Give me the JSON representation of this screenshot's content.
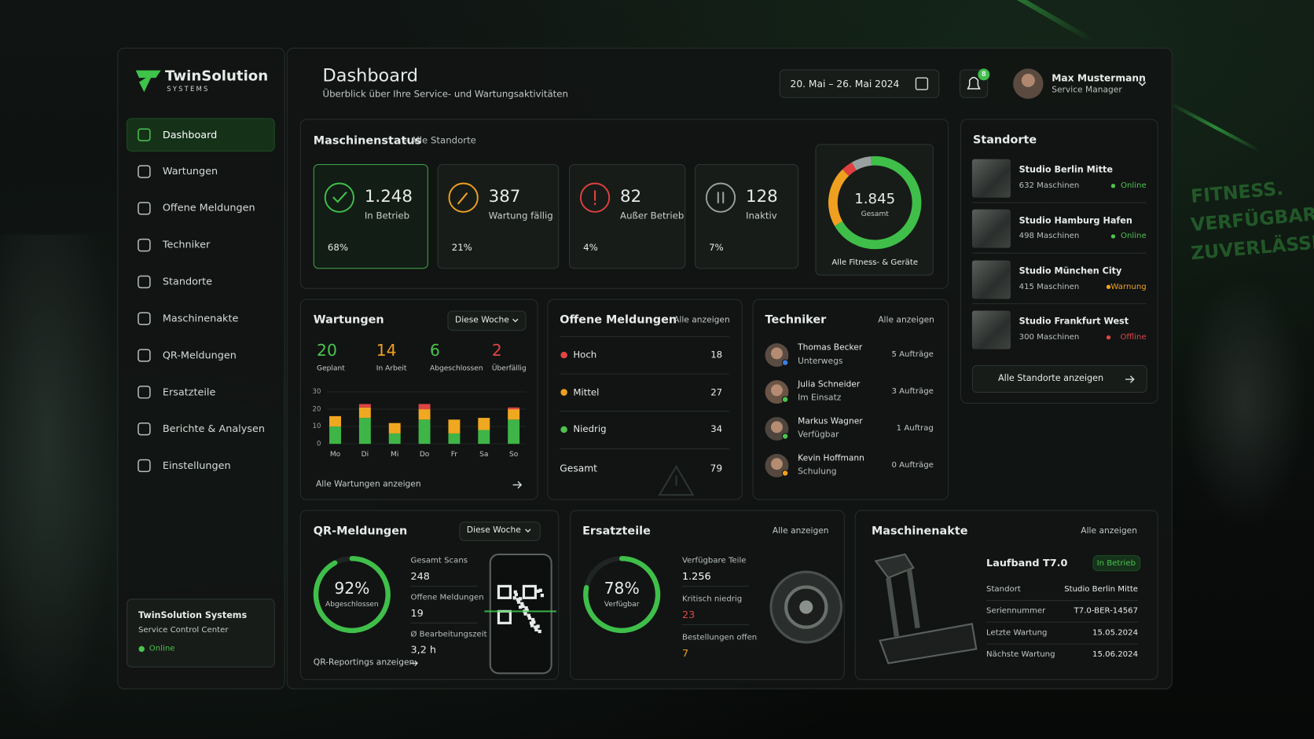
{
  "brand": {
    "name": "TwinSolution",
    "tagline": "SYSTEMS"
  },
  "nav": [
    "Dashboard",
    "Wartungen",
    "Offene Meldungen",
    "Techniker",
    "Standorte",
    "Maschinenakte",
    "QR-Meldungen",
    "Ersatzteile",
    "Berichte & Analysen",
    "Einstellungen"
  ],
  "system": {
    "name": "TwinSolution Systems",
    "subtitle": "Service Control Center",
    "status": "Online"
  },
  "header": {
    "title": "Dashboard",
    "subtitle": "Überblick über Ihre Service- und Wartungsaktivitäten",
    "date_range": "20. Mai – 26. Mai 2024",
    "notifications": "8",
    "user": "Max Mustermann",
    "role": "Service Manager"
  },
  "machine_status": {
    "title": "Maschinenstatus",
    "scope": "– Alle Standorte",
    "cards": [
      {
        "value": "1.248",
        "label": "In Betrieb",
        "percent": 68,
        "percent_label": "68%",
        "color": "#3fbf4a"
      },
      {
        "value": "387",
        "label": "Wartung fällig",
        "percent": 21,
        "percent_label": "21%",
        "color": "#f0a020"
      },
      {
        "value": "82",
        "label": "Außer Betrieb",
        "percent": 4,
        "percent_label": "4%",
        "color": "#e04040"
      },
      {
        "value": "128",
        "label": "Inaktiv",
        "percent": 7,
        "percent_label": "7%",
        "color": "#9aa0a0"
      }
    ],
    "total": "1.845",
    "total_label": "Gesamt",
    "caption": "Alle Fitness- & Geräte"
  },
  "maintenance": {
    "title": "Wartungen",
    "period": "Diese Woche",
    "stats": [
      {
        "value": "20",
        "label": "Geplant",
        "color": "#4cc34f"
      },
      {
        "value": "14",
        "label": "In Arbeit",
        "color": "#f0a020"
      },
      {
        "value": "6",
        "label": "Abgeschlossen",
        "color": "#4cc34f"
      },
      {
        "value": "2",
        "label": "Überfällig",
        "color": "#e04545"
      }
    ],
    "chart": {
      "type": "bar",
      "stacked": true,
      "categories": [
        "Mo",
        "Di",
        "Mi",
        "Do",
        "Fr",
        "Sa",
        "So"
      ],
      "series": [
        {
          "color": "#3fb548",
          "values": [
            10,
            15,
            6,
            14,
            6,
            8,
            14
          ]
        },
        {
          "color": "#f0a820",
          "values": [
            6,
            6,
            6,
            6,
            8,
            7,
            6
          ]
        },
        {
          "color": "#e04545",
          "values": [
            0,
            2,
            0,
            3,
            0,
            0,
            1
          ]
        }
      ],
      "ylim": [
        0,
        30
      ],
      "yticks": [
        0,
        10,
        20,
        30
      ]
    },
    "link": "Alle Wartungen anzeigen"
  },
  "reports": {
    "title": "Offene Meldungen",
    "link": "Alle anzeigen",
    "rows": [
      {
        "label": "Hoch",
        "value": "18",
        "color": "#e04545"
      },
      {
        "label": "Mittel",
        "value": "27",
        "color": "#f0a020"
      },
      {
        "label": "Niedrig",
        "value": "34",
        "color": "#4cc34f"
      }
    ],
    "total_label": "Gesamt",
    "total": "79"
  },
  "technicians": {
    "title": "Techniker",
    "link": "Alle anzeigen",
    "rows": [
      {
        "name": "Thomas Becker",
        "status": "Unterwegs",
        "orders": "5 Aufträge",
        "dot": "#3a7fe0"
      },
      {
        "name": "Julia Schneider",
        "status": "Im Einsatz",
        "orders": "3 Aufträge",
        "dot": "#4cc34f"
      },
      {
        "name": "Markus Wagner",
        "status": "Verfügbar",
        "orders": "1 Auftrag",
        "dot": "#4cc34f"
      },
      {
        "name": "Kevin Hoffmann",
        "status": "Schulung",
        "orders": "0 Aufträge",
        "dot": "#f0a020"
      }
    ]
  },
  "locations": {
    "title": "Standorte",
    "button": "Alle Standorte anzeigen",
    "rows": [
      {
        "name": "Studio Berlin Mitte",
        "machines": "632 Maschinen",
        "status": "Online",
        "color": "#4cc34f"
      },
      {
        "name": "Studio Hamburg Hafen",
        "machines": "498 Maschinen",
        "status": "Online",
        "color": "#4cc34f"
      },
      {
        "name": "Studio München City",
        "machines": "415 Maschinen",
        "status": "Warnung",
        "color": "#f0a020"
      },
      {
        "name": "Studio Frankfurt West",
        "machines": "300 Maschinen",
        "status": "Offline",
        "color": "#e04545"
      }
    ]
  },
  "qr": {
    "title": "QR-Meldungen",
    "period": "Diese Woche",
    "percent": 92,
    "percent_label": "92%",
    "gauge_label": "Abgeschlossen",
    "stats": [
      {
        "label": "Gesamt Scans",
        "value": "248"
      },
      {
        "label": "Offene Meldungen",
        "value": "19"
      },
      {
        "label": "Ø Bearbeitungszeit",
        "value": "3,2 h"
      }
    ],
    "link": "QR-Reportings anzeigen"
  },
  "parts": {
    "title": "Ersatzteile",
    "link": "Alle anzeigen",
    "percent": 78,
    "percent_label": "78%",
    "gauge_label": "Verfügbar",
    "stats": [
      {
        "label": "Verfügbare Teile",
        "value": "1.256",
        "color": "#ffffff"
      },
      {
        "label": "Kritisch niedrig",
        "value": "23",
        "color": "#e04545"
      },
      {
        "label": "Bestellungen offen",
        "value": "7",
        "color": "#f0a020"
      }
    ]
  },
  "machine_file": {
    "title": "Maschinenakte",
    "link": "Alle anzeigen",
    "machine": "Laufband T7.0",
    "status": "In Betrieb",
    "rows": [
      {
        "label": "Standort",
        "value": "Studio Berlin Mitte"
      },
      {
        "label": "Seriennummer",
        "value": "T7.0-BER-14567"
      },
      {
        "label": "Letzte Wartung",
        "value": "15.05.2024"
      },
      {
        "label": "Nächste Wartung",
        "value": "15.06.2024"
      }
    ]
  },
  "backdrop": [
    "FITNESS.",
    "VERFÜGBAR.",
    "ZUVERLÄSSIG."
  ]
}
